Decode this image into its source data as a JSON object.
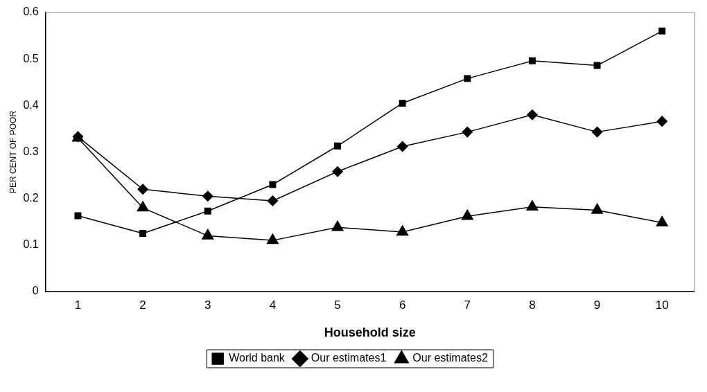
{
  "chart_data": {
    "type": "line",
    "xlabel": "Household size",
    "ylabel": "PER CENT OF POOR",
    "categories": [
      "1",
      "2",
      "3",
      "4",
      "5",
      "6",
      "7",
      "8",
      "9",
      "10"
    ],
    "series": [
      {
        "name": "World bank",
        "color": "#000000",
        "marker": "square",
        "values": [
          0.163,
          0.125,
          0.173,
          0.23,
          0.313,
          0.405,
          0.458,
          0.496,
          0.486,
          0.56
        ]
      },
      {
        "name": "Our estimates1",
        "color": "#000000",
        "marker": "diamond",
        "values": [
          0.333,
          0.22,
          0.205,
          0.195,
          0.258,
          0.312,
          0.343,
          0.38,
          0.343,
          0.366
        ]
      },
      {
        "name": "Our estimates2",
        "color": "#000000",
        "marker": "triangle",
        "values": [
          0.33,
          0.18,
          0.12,
          0.11,
          0.138,
          0.128,
          0.162,
          0.182,
          0.175,
          0.148
        ]
      }
    ],
    "ylim": [
      0,
      0.6
    ],
    "yticks": [
      0,
      0.1,
      0.2,
      0.3,
      0.4,
      0.5,
      0.6
    ],
    "grid": false,
    "legend": "bottom",
    "line_style": "solid"
  }
}
